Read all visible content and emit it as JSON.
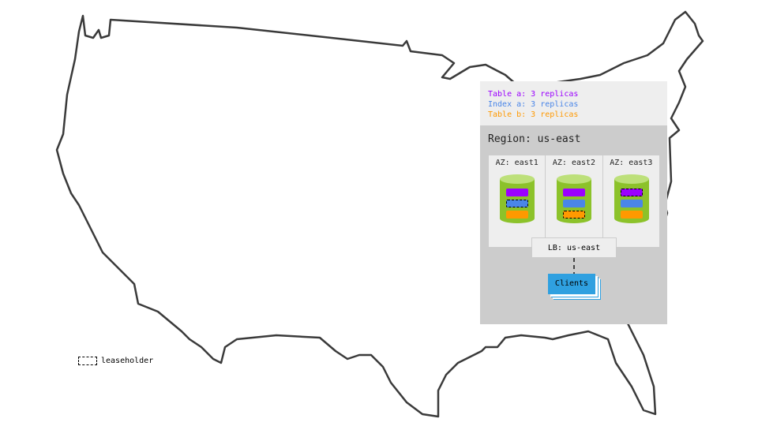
{
  "legend": {
    "items": [
      {
        "label": "Table a: 3 replicas",
        "color": "#9b00ff"
      },
      {
        "label": "Index a: 3 replicas",
        "color": "#4a86e8"
      },
      {
        "label": "Table b: 3 replicas",
        "color": "#ff9900"
      }
    ]
  },
  "region": {
    "label": "Region: us-east"
  },
  "azs": [
    {
      "label": "AZ: east1",
      "leaseholder": "Index a"
    },
    {
      "label": "AZ: east2",
      "leaseholder": "Table b"
    },
    {
      "label": "AZ: east3",
      "leaseholder": "Table a"
    }
  ],
  "lb": {
    "label": "LB: us-east"
  },
  "clients": {
    "label": "Clients"
  },
  "key": {
    "label": "leaseholder"
  }
}
